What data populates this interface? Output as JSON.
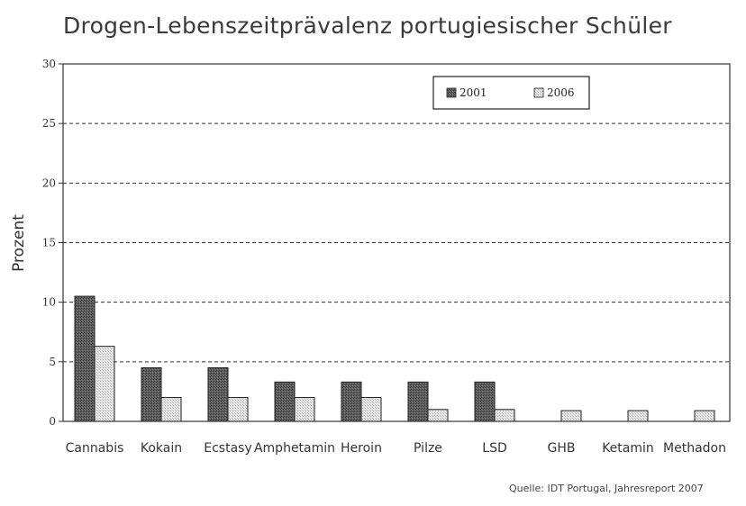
{
  "title": "Drogen-Lebenszeitprävalenz portugiesischer Schüler",
  "source": "Quelle: IDT Portugal, Jahresreport 2007",
  "chart_data": {
    "type": "bar",
    "title": "Drogen-Lebenszeitprävalenz portugiesischer Schüler",
    "xlabel": "",
    "ylabel": "Prozent",
    "ylim": [
      0,
      30
    ],
    "yticks": [
      0,
      5,
      10,
      15,
      20,
      25,
      30
    ],
    "grid": "horizontal dashed",
    "legend_position": "top-right",
    "categories": [
      "Cannabis",
      "Kokain",
      "Ecstasy",
      "Amphetamin",
      "Heroin",
      "Pilze",
      "LSD",
      "GHB",
      "Ketamin",
      "Methadon"
    ],
    "series": [
      {
        "name": "2001",
        "color": "#555555",
        "pattern": "dark-hatched",
        "values": [
          10.5,
          4.5,
          4.5,
          3.3,
          3.3,
          3.3,
          3.3,
          null,
          null,
          null
        ]
      },
      {
        "name": "2006",
        "color": "#dddddd",
        "pattern": "light-dotted",
        "values": [
          6.3,
          2,
          2,
          2,
          2,
          1,
          1,
          0.9,
          0.9,
          0.9
        ]
      }
    ]
  }
}
